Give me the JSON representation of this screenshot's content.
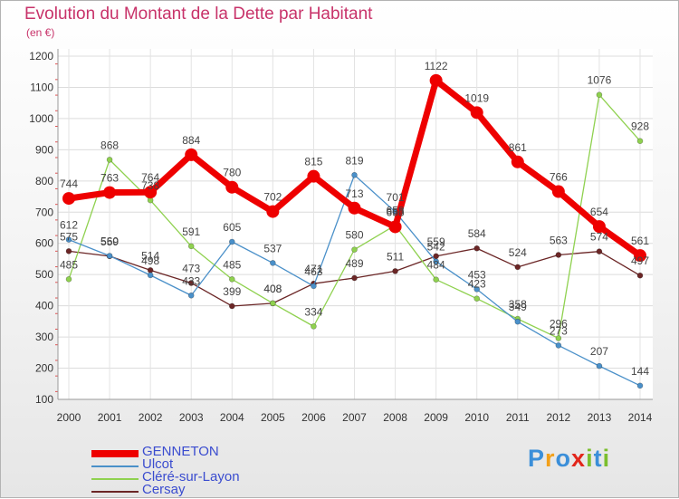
{
  "header": {
    "title": "Evolution du Montant de la Dette par Habitant",
    "subtitle": "(en €)"
  },
  "logo": {
    "text": "Proxiti",
    "colors": [
      "#3b8fd9",
      "#f2a01a",
      "#3b8fd9",
      "#e2261b",
      "#7bbf2e",
      "#3b8fd9",
      "#7bbf2e"
    ]
  },
  "chart_data": {
    "type": "line",
    "x": [
      2000,
      2001,
      2002,
      2003,
      2004,
      2005,
      2006,
      2007,
      2008,
      2009,
      2010,
      2011,
      2012,
      2013,
      2014
    ],
    "ylim": [
      100,
      1200
    ],
    "yticks": [
      100,
      200,
      300,
      400,
      500,
      600,
      700,
      800,
      900,
      1000,
      1100,
      1200
    ],
    "grid": true,
    "legend_position": "bottom-left",
    "series": [
      {
        "name": "GENNETON",
        "color": "#ee0000",
        "values": [
          744,
          763,
          764,
          884,
          780,
          702,
          815,
          713,
          653,
          1122,
          1019,
          861,
          766,
          654,
          561
        ]
      },
      {
        "name": "Ulcot",
        "color": "#4a90c9",
        "values": [
          612,
          560,
          498,
          433,
          605,
          537,
          463,
          819,
          701,
          542,
          453,
          349,
          273,
          207,
          144
        ]
      },
      {
        "name": "Cléré-sur-Layon",
        "color": "#8fd14f",
        "values": [
          485,
          868,
          738,
          591,
          485,
          408,
          334,
          580,
          658,
          484,
          423,
          358,
          296,
          1076,
          928
        ]
      },
      {
        "name": "Cersay",
        "color": "#6b2626",
        "values": [
          575,
          559,
          514,
          473,
          399,
          408,
          471,
          489,
          511,
          559,
          584,
          524,
          563,
          574,
          497
        ]
      }
    ]
  }
}
